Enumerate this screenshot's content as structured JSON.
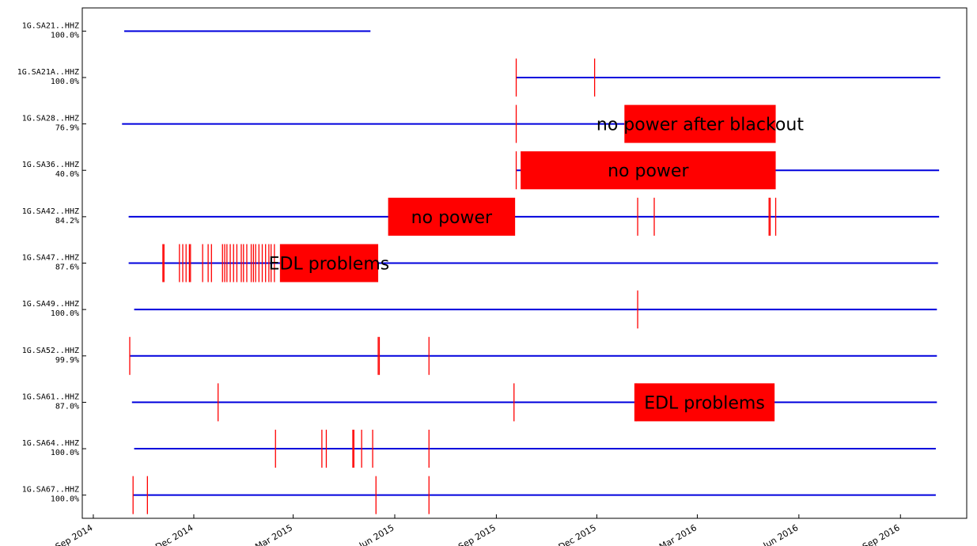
{
  "chart_data": {
    "type": "availability",
    "xlim": [
      "2014-08-22",
      "2016-10-31"
    ],
    "xticks": [
      {
        "value": "2014-09-01",
        "label": "Sep 2014"
      },
      {
        "value": "2014-12-01",
        "label": "Dec 2014"
      },
      {
        "value": "2015-03-01",
        "label": "Mar 2015"
      },
      {
        "value": "2015-06-01",
        "label": "Jun 2015"
      },
      {
        "value": "2015-09-01",
        "label": "Sep 2015"
      },
      {
        "value": "2015-12-01",
        "label": "Dec 2015"
      },
      {
        "value": "2016-03-01",
        "label": "Mar 2016"
      },
      {
        "value": "2016-06-01",
        "label": "Jun 2016"
      },
      {
        "value": "2016-09-01",
        "label": "Sep 2016"
      }
    ],
    "data_color": "#0000dd",
    "gap_color": "#ff0000",
    "rows": [
      {
        "name": "1G.SA21..HHZ",
        "coverage": "100.0%",
        "segments": [
          [
            "2014-09-29",
            "2015-05-10"
          ]
        ],
        "gaps": [],
        "boxes": []
      },
      {
        "name": "1G.SA21A..HHZ",
        "coverage": "100.0%",
        "segments": [
          [
            "2015-09-19",
            "2016-10-07"
          ]
        ],
        "gaps": [
          "2015-09-19",
          "2015-11-29"
        ],
        "boxes": []
      },
      {
        "name": "1G.SA28..HHZ",
        "coverage": "76.9%",
        "segments": [
          [
            "2014-09-27",
            "2015-12-26"
          ]
        ],
        "gaps": [
          "2015-09-19"
        ],
        "boxes": [
          {
            "start": "2015-12-26",
            "end": "2016-05-11",
            "label": "no power after blackout"
          }
        ]
      },
      {
        "name": "1G.SA36..HHZ",
        "coverage": "40.0%",
        "segments": [
          [
            "2015-09-19",
            "2016-10-06"
          ]
        ],
        "gaps": [
          "2015-09-19"
        ],
        "boxes": [
          {
            "start": "2015-09-23",
            "end": "2016-05-11",
            "label": "no power"
          }
        ]
      },
      {
        "name": "1G.SA42..HHZ",
        "coverage": "84.2%",
        "segments": [
          [
            "2014-10-03",
            "2016-10-06"
          ]
        ],
        "gaps": [
          "2016-01-07",
          "2016-01-22",
          "2016-05-05",
          "2016-05-06",
          "2016-05-11"
        ],
        "boxes": [
          {
            "start": "2015-05-26",
            "end": "2015-09-18",
            "label": "no power"
          }
        ]
      },
      {
        "name": "1G.SA47..HHZ",
        "coverage": "87.6%",
        "segments": [
          [
            "2014-10-03",
            "2016-10-05"
          ]
        ],
        "gaps": [
          "2014-11-03",
          "2014-11-04",
          "2014-11-18",
          "2014-11-21",
          "2014-11-24",
          "2014-11-27",
          "2014-11-28",
          "2014-12-09",
          "2014-12-14",
          "2014-12-17",
          "2014-12-27",
          "2014-12-29",
          "2014-12-31",
          "2015-01-03",
          "2015-01-06",
          "2015-01-09",
          "2015-01-13",
          "2015-01-15",
          "2015-01-18",
          "2015-01-22",
          "2015-01-24",
          "2015-01-26",
          "2015-01-29",
          "2015-02-01",
          "2015-02-04",
          "2015-02-07",
          "2015-02-09",
          "2015-02-12",
          "2015-05-15",
          "2015-05-16"
        ],
        "boxes": [
          {
            "start": "2015-02-17",
            "end": "2015-05-17",
            "label": "EDL problems"
          }
        ]
      },
      {
        "name": "1G.SA49..HHZ",
        "coverage": "100.0%",
        "segments": [
          [
            "2014-10-08",
            "2016-10-04"
          ]
        ],
        "gaps": [
          "2016-01-07"
        ],
        "boxes": []
      },
      {
        "name": "1G.SA52..HHZ",
        "coverage": "99.9%",
        "segments": [
          [
            "2014-10-04",
            "2016-10-04"
          ]
        ],
        "gaps": [
          "2014-10-04",
          "2015-05-17",
          "2015-05-18",
          "2015-07-02"
        ],
        "boxes": []
      },
      {
        "name": "1G.SA61..HHZ",
        "coverage": "87.0%",
        "segments": [
          [
            "2014-10-06",
            "2016-10-04"
          ]
        ],
        "gaps": [
          "2014-12-23",
          "2015-09-17",
          "2016-01-06"
        ],
        "boxes": [
          {
            "start": "2016-01-04",
            "end": "2016-05-10",
            "label": "EDL problems"
          }
        ]
      },
      {
        "name": "1G.SA64..HHZ",
        "coverage": "100.0%",
        "segments": [
          [
            "2014-10-08",
            "2016-10-03"
          ]
        ],
        "gaps": [
          "2015-02-13",
          "2015-03-27",
          "2015-03-31",
          "2015-04-24",
          "2015-04-25",
          "2015-05-02",
          "2015-05-12",
          "2015-07-02"
        ],
        "boxes": []
      },
      {
        "name": "1G.SA67..HHZ",
        "coverage": "100.0%",
        "segments": [
          [
            "2014-10-07",
            "2016-10-03"
          ]
        ],
        "gaps": [
          "2014-10-07",
          "2014-10-20",
          "2015-05-15",
          "2015-07-02"
        ],
        "boxes": []
      }
    ]
  }
}
